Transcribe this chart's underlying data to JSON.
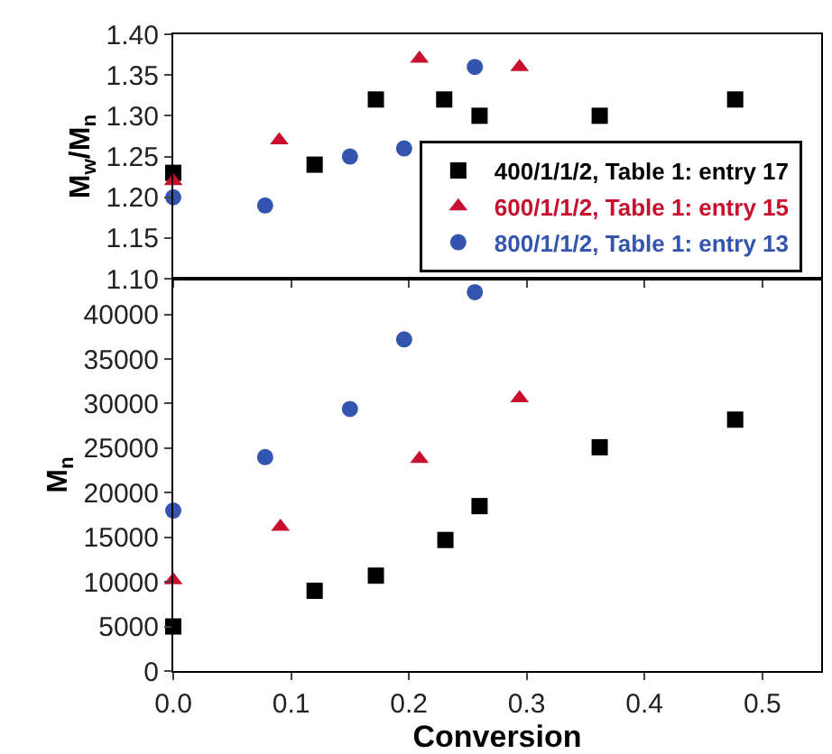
{
  "chart_data": [
    {
      "type": "scatter",
      "ylabel": "M$_{w}$/M$_{n}$",
      "xlim": [
        0,
        0.55
      ],
      "xticks": [
        {
          "value": 0,
          "label": null
        },
        {
          "value": 0.1,
          "label": null
        },
        {
          "value": 0.2,
          "label": null
        },
        {
          "value": 0.3,
          "label": null
        },
        {
          "value": 0.4,
          "label": null
        },
        {
          "value": 0.5,
          "label": null
        }
      ],
      "ylim": [
        1.1,
        1.4
      ],
      "yticks": [
        {
          "value": 1.1,
          "label": "1.10"
        },
        1.15,
        {
          "value": 1.2,
          "label": "1.20"
        },
        1.25,
        {
          "value": 1.3,
          "label": "1.30"
        },
        1.35,
        {
          "value": 1.4,
          "label": "1.40"
        }
      ],
      "tick_labels": "y",
      "grid": false,
      "legend": "bottom right",
      "series": [
        {
          "name": "400/1/1/2, Table 1: entry 17",
          "color": "#000000",
          "marker": "square",
          "x": [
            0.0,
            0.12,
            0.172,
            0.23,
            0.26,
            0.362,
            0.477
          ],
          "values": [
            1.23,
            1.24,
            1.32,
            1.32,
            1.3,
            1.3,
            1.32
          ]
        },
        {
          "name": "600/1/1/2, Table 1: entry 15",
          "color": "#c8102e",
          "marker": "triangle",
          "x": [
            0.0,
            0.09,
            0.209,
            0.294
          ],
          "values": [
            1.22,
            1.27,
            1.37,
            1.36
          ]
        },
        {
          "name": "800/1/1/2, Table 1: entry 13",
          "color": "#3355b0",
          "marker": "circle",
          "x": [
            0.0,
            0.078,
            0.15,
            0.196,
            0.256
          ],
          "values": [
            1.2,
            1.19,
            1.25,
            1.26,
            1.36
          ]
        }
      ]
    },
    {
      "type": "scatter",
      "xlabel": "Conversion",
      "ylabel": "M$_{n}$",
      "xlim": [
        0,
        0.55
      ],
      "xticks": [
        {
          "value": 0,
          "label": "0.0"
        },
        0.1,
        0.2,
        0.3,
        0.4,
        0.5
      ],
      "ylim": [
        0,
        44000
      ],
      "yticks": [
        0,
        5000,
        10000,
        15000,
        20000,
        25000,
        30000,
        35000,
        40000
      ],
      "grid": false,
      "legend": false,
      "series": [
        {
          "color": "#000000",
          "marker": "square",
          "x": [
            0.0,
            0.12,
            0.172,
            0.231,
            0.26,
            0.362,
            0.477
          ],
          "values": [
            5000,
            9000,
            10700,
            14700,
            18500,
            25100,
            28200
          ]
        },
        {
          "color": "#c8102e",
          "marker": "triangle",
          "x": [
            0.0,
            0.091,
            0.209,
            0.294
          ],
          "values": [
            10200,
            16200,
            23800,
            30600
          ]
        },
        {
          "color": "#3355b0",
          "marker": "circle",
          "x": [
            0.0,
            0.078,
            0.15,
            0.196,
            0.256
          ],
          "values": [
            18000,
            24000,
            29400,
            37200,
            42500
          ]
        }
      ]
    }
  ]
}
